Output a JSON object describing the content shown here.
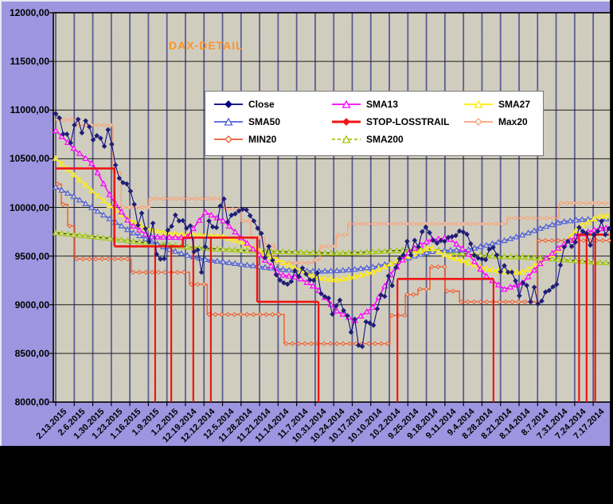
{
  "title": {
    "text": "DAX-DETAIL",
    "color": "#ff9429"
  },
  "y_axis": {
    "labels": [
      "12000,00",
      "11500,00",
      "11000,00",
      "10500,00",
      "10000,00",
      "9500,00",
      "9000,00",
      "8500,00",
      "8000,00"
    ]
  },
  "x_axis": {
    "labels": [
      "2.13.2015",
      "2.6.2015",
      "1.30.2015",
      "1.23.2015",
      "1.16.2015",
      "1.9.2015",
      "1.2.2015",
      "12.19.2014",
      "12.12.2014",
      "12.5.2014",
      "11.28.2014",
      "11.21.2014",
      "11.14.2014",
      "11.7.2014",
      "10.31.2014",
      "10.24.2014",
      "10.17.2014",
      "10.10.2014",
      "10.2.2014",
      "9.25.2014",
      "9.18.2014",
      "9.11.2014",
      "9.4.2014",
      "8.28.2014",
      "8.21.2014",
      "8.14.2014",
      "8.7.2014",
      "7.31.2014",
      "7.24.2014",
      "7.17.2014"
    ]
  },
  "legend": {
    "items": [
      {
        "label": "Close",
        "color": "#00007b",
        "marker": "diamond",
        "filled": true,
        "thick": false,
        "dashed": false
      },
      {
        "label": "SMA13",
        "color": "#ff00ff",
        "marker": "triangle",
        "filled": false,
        "thick": false,
        "dashed": false
      },
      {
        "label": "SMA27",
        "color": "#ffee00",
        "marker": "triangle",
        "filled": false,
        "thick": false,
        "dashed": false
      },
      {
        "label": "SMA50",
        "color": "#5060d8",
        "marker": "triangle",
        "filled": false,
        "thick": false,
        "dashed": false
      },
      {
        "label": "STOP-LOSSTRAIL",
        "color": "#f01414",
        "marker": "diamond",
        "filled": true,
        "thick": true,
        "dashed": false
      },
      {
        "label": "Max20",
        "color": "#f9a078",
        "marker": "diamond",
        "filled": false,
        "thick": false,
        "dashed": false
      },
      {
        "label": "MIN20",
        "color": "#ee5a2d",
        "marker": "diamond",
        "filled": false,
        "thick": false,
        "dashed": false
      },
      {
        "label": "SMA200",
        "color": "#a2c80a",
        "marker": "triangle",
        "filled": false,
        "thick": false,
        "dashed": true
      }
    ]
  },
  "chart_data": {
    "type": "line",
    "title": "DAX-DETAIL",
    "x_reversed_time": true,
    "x_labels": [
      "2.13.2015",
      "2.6.2015",
      "1.30.2015",
      "1.23.2015",
      "1.16.2015",
      "1.9.2015",
      "1.2.2015",
      "12.19.2014",
      "12.12.2014",
      "12.5.2014",
      "11.28.2014",
      "11.21.2014",
      "11.14.2014",
      "11.7.2014",
      "10.31.2014",
      "10.24.2014",
      "10.17.2014",
      "10.10.2014",
      "10.2.2014",
      "9.25.2014",
      "9.18.2014",
      "9.11.2014",
      "9.4.2014",
      "8.28.2014",
      "8.21.2014",
      "8.14.2014",
      "8.7.2014",
      "7.31.2014",
      "7.24.2014",
      "7.17.2014"
    ],
    "ylim": [
      8000,
      12000
    ],
    "ytick_step": 500,
    "n_days": 149,
    "days_per_gridline": 4.96,
    "grid_on": true,
    "plot_bg": "#d7d4c6",
    "plot_bg_alt": "#c9c6b8",
    "outer_bg": "#9e96df",
    "grid_v_color": "#5c5c94",
    "grid_h_color": "#1c1c1c",
    "series": [
      {
        "name": "Max20",
        "kind": "steps",
        "color": "#f9a078",
        "marker": "diamond",
        "marker_filled": false,
        "width": 1.4,
        "segments": [
          [
            0,
            5.7,
            10900
          ],
          [
            5.7,
            15.3,
            10845
          ],
          [
            15.3,
            17.5,
            10360
          ],
          [
            17.5,
            24.9,
            10000
          ],
          [
            24.9,
            45.1,
            10090
          ],
          [
            45.1,
            49.6,
            9980
          ],
          [
            49.6,
            52.2,
            9860
          ],
          [
            52.2,
            55.8,
            9690
          ],
          [
            55.8,
            58.6,
            9610
          ],
          [
            58.6,
            69,
            9430
          ],
          [
            69,
            70.7,
            9460
          ],
          [
            70.7,
            75,
            9600
          ],
          [
            75,
            78.1,
            9715
          ],
          [
            78.1,
            120.7,
            9830
          ],
          [
            120.7,
            134.6,
            9890
          ],
          [
            134.6,
            148,
            10045
          ]
        ]
      },
      {
        "name": "MIN20",
        "kind": "steps",
        "color": "#ee5a2d",
        "marker": "diamond",
        "marker_filled": false,
        "width": 1.4,
        "segments": [
          [
            0,
            1.5,
            10240
          ],
          [
            1.5,
            3.2,
            10030
          ],
          [
            3.2,
            5.1,
            9810
          ],
          [
            5.1,
            20.2,
            9470
          ],
          [
            20.2,
            35.8,
            9334
          ],
          [
            35.8,
            40.5,
            9210
          ],
          [
            40.5,
            61.1,
            8900
          ],
          [
            61.1,
            89.4,
            8600
          ],
          [
            89.4,
            93.5,
            8890
          ],
          [
            93.5,
            96.9,
            9105
          ],
          [
            96.9,
            100.1,
            9160
          ],
          [
            100.1,
            104.1,
            9390
          ],
          [
            104.1,
            108,
            9140
          ],
          [
            108,
            128.8,
            9030
          ],
          [
            128.8,
            148,
            9660
          ]
        ]
      },
      {
        "name": "SMA200",
        "kind": "sampled",
        "color": "#a2c80a",
        "marker": "triangle",
        "marker_filled": false,
        "width": 1.8,
        "dash_overlay": "#1a1a1a",
        "idx_step": 5,
        "values": [
          9740,
          9720,
          9700,
          9680,
          9655,
          9635,
          9615,
          9595,
          9580,
          9570,
          9560,
          9550,
          9545,
          9540,
          9535,
          9530,
          9535,
          9545,
          9555,
          9565,
          9570,
          9550,
          9520,
          9505,
          9495,
          9490,
          9480,
          9465,
          9450,
          9435,
          9430
        ]
      },
      {
        "name": "SMA50",
        "kind": "sampled",
        "color": "#5060d8",
        "marker": "triangle",
        "marker_filled": false,
        "width": 1.6,
        "idx_step": 5,
        "values": [
          10210,
          10110,
          9990,
          9870,
          9755,
          9660,
          9575,
          9510,
          9465,
          9440,
          9415,
          9390,
          9365,
          9350,
          9345,
          9350,
          9365,
          9390,
          9430,
          9490,
          9545,
          9560,
          9565,
          9610,
          9660,
          9720,
          9790,
          9850,
          9875,
          9885,
          9880
        ]
      },
      {
        "name": "SMA27",
        "kind": "sampled",
        "color": "#ffee00",
        "marker": "triangle",
        "marker_filled": false,
        "width": 1.6,
        "idx_step": 5,
        "values": [
          10505,
          10330,
          10160,
          10000,
          9865,
          9775,
          9735,
          9720,
          9712,
          9700,
          9640,
          9545,
          9450,
          9360,
          9280,
          9255,
          9290,
          9340,
          9430,
          9510,
          9590,
          9500,
          9440,
          9370,
          9340,
          9335,
          9440,
          9580,
          9800,
          9905,
          9920
        ]
      },
      {
        "name": "SMA13",
        "kind": "sampled",
        "color": "#ff00ff",
        "marker": "triangle",
        "marker_filled": false,
        "width": 1.6,
        "idx_step": 5,
        "values": [
          10790,
          10600,
          10440,
          10090,
          9830,
          9700,
          9695,
          9690,
          9950,
          9860,
          9675,
          9495,
          9310,
          9280,
          9165,
          8940,
          8840,
          8980,
          9335,
          9560,
          9665,
          9690,
          9540,
          9300,
          9160,
          9230,
          9440,
          9600,
          9720,
          9780,
          9800
        ]
      },
      {
        "name": "STOP-LOSSTRAIL",
        "kind": "steps",
        "color": "#f01414",
        "marker": null,
        "width": 2.6,
        "segments": [
          [
            0,
            15.7,
            10400
          ],
          [
            15.7,
            34,
            9600
          ],
          [
            34,
            53.9,
            9690
          ],
          [
            53.9,
            70.3,
            9030
          ],
          [
            91.4,
            117.1,
            9265
          ],
          [
            139.5,
            148,
            9720
          ]
        ],
        "triggers": [
          26.6,
          30.9,
          36.8,
          41.5,
          70.3,
          91.4,
          117.1,
          140,
          142,
          144.3
        ]
      },
      {
        "name": "Close",
        "kind": "daily",
        "color": "#00007b",
        "marker": "diamond",
        "marker_filled": true,
        "marker_color": "#1e1e78",
        "width": 1,
        "values": [
          10963,
          10919,
          10754,
          10753,
          10663,
          10846,
          10905,
          10766,
          10890,
          10828,
          10694,
          10737,
          10711,
          10628,
          10798,
          10649,
          10435,
          10300,
          10255,
          10242,
          10167,
          10032,
          9817,
          9941,
          9781,
          9648,
          9837,
          9518,
          9469,
          9473,
          9765,
          9806,
          9922,
          9861,
          9865,
          9787,
          9811,
          9545,
          9564,
          9334,
          9595,
          9862,
          9800,
          9793,
          10014,
          10087,
          9851,
          9920,
          9934,
          9964,
          9981,
          9975,
          9915,
          9861,
          9786,
          9733,
          9484,
          9599,
          9456,
          9307,
          9253,
          9225,
          9211,
          9239,
          9351,
          9291,
          9377,
          9315,
          9255,
          9251,
          9327,
          9114,
          9083,
          9068,
          8903,
          8988,
          9047,
          8940,
          8887,
          8718,
          8851,
          8583,
          8571,
          8825,
          8812,
          8789,
          8958,
          9101,
          9086,
          9296,
          9196,
          9382,
          9474,
          9510,
          9651,
          9511,
          9662,
          9595,
          9750,
          9799,
          9740,
          9661,
          9632,
          9659,
          9651,
          9692,
          9700,
          9710,
          9758,
          9747,
          9724,
          9626,
          9507,
          9479,
          9470,
          9463,
          9570,
          9588,
          9510,
          9339,
          9401,
          9334,
          9335,
          9245,
          9093,
          9225,
          9198,
          9030,
          9180,
          9009,
          9038,
          9130,
          9147,
          9184,
          9210,
          9407,
          9593,
          9654,
          9598,
          9644,
          9794,
          9754,
          9734,
          9612,
          9720,
          9754,
          9859,
          9719,
          9783
        ]
      }
    ]
  }
}
